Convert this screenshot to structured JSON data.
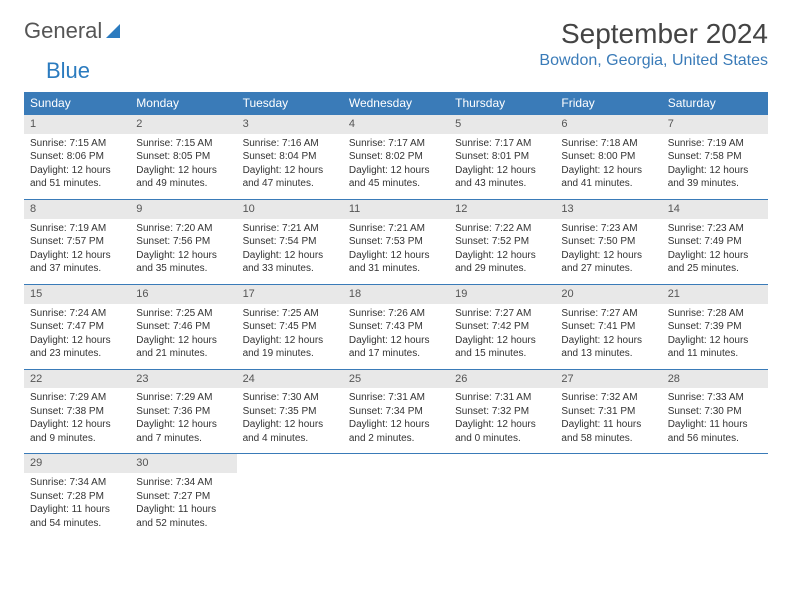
{
  "logo": {
    "text1": "General",
    "text2": "Blue"
  },
  "title": "September 2024",
  "location": "Bowdon, Georgia, United States",
  "colors": {
    "header_bg": "#3a7bb8",
    "header_text": "#ffffff",
    "daynum_bg": "#e8e8e8",
    "border": "#3a7bb8",
    "location_text": "#3a7bb8",
    "logo_blue": "#2b7bbf"
  },
  "weekdays": [
    "Sunday",
    "Monday",
    "Tuesday",
    "Wednesday",
    "Thursday",
    "Friday",
    "Saturday"
  ],
  "weeks": [
    [
      {
        "n": "1",
        "sr": "7:15 AM",
        "ss": "8:06 PM",
        "dl": "12 hours and 51 minutes."
      },
      {
        "n": "2",
        "sr": "7:15 AM",
        "ss": "8:05 PM",
        "dl": "12 hours and 49 minutes."
      },
      {
        "n": "3",
        "sr": "7:16 AM",
        "ss": "8:04 PM",
        "dl": "12 hours and 47 minutes."
      },
      {
        "n": "4",
        "sr": "7:17 AM",
        "ss": "8:02 PM",
        "dl": "12 hours and 45 minutes."
      },
      {
        "n": "5",
        "sr": "7:17 AM",
        "ss": "8:01 PM",
        "dl": "12 hours and 43 minutes."
      },
      {
        "n": "6",
        "sr": "7:18 AM",
        "ss": "8:00 PM",
        "dl": "12 hours and 41 minutes."
      },
      {
        "n": "7",
        "sr": "7:19 AM",
        "ss": "7:58 PM",
        "dl": "12 hours and 39 minutes."
      }
    ],
    [
      {
        "n": "8",
        "sr": "7:19 AM",
        "ss": "7:57 PM",
        "dl": "12 hours and 37 minutes."
      },
      {
        "n": "9",
        "sr": "7:20 AM",
        "ss": "7:56 PM",
        "dl": "12 hours and 35 minutes."
      },
      {
        "n": "10",
        "sr": "7:21 AM",
        "ss": "7:54 PM",
        "dl": "12 hours and 33 minutes."
      },
      {
        "n": "11",
        "sr": "7:21 AM",
        "ss": "7:53 PM",
        "dl": "12 hours and 31 minutes."
      },
      {
        "n": "12",
        "sr": "7:22 AM",
        "ss": "7:52 PM",
        "dl": "12 hours and 29 minutes."
      },
      {
        "n": "13",
        "sr": "7:23 AM",
        "ss": "7:50 PM",
        "dl": "12 hours and 27 minutes."
      },
      {
        "n": "14",
        "sr": "7:23 AM",
        "ss": "7:49 PM",
        "dl": "12 hours and 25 minutes."
      }
    ],
    [
      {
        "n": "15",
        "sr": "7:24 AM",
        "ss": "7:47 PM",
        "dl": "12 hours and 23 minutes."
      },
      {
        "n": "16",
        "sr": "7:25 AM",
        "ss": "7:46 PM",
        "dl": "12 hours and 21 minutes."
      },
      {
        "n": "17",
        "sr": "7:25 AM",
        "ss": "7:45 PM",
        "dl": "12 hours and 19 minutes."
      },
      {
        "n": "18",
        "sr": "7:26 AM",
        "ss": "7:43 PM",
        "dl": "12 hours and 17 minutes."
      },
      {
        "n": "19",
        "sr": "7:27 AM",
        "ss": "7:42 PM",
        "dl": "12 hours and 15 minutes."
      },
      {
        "n": "20",
        "sr": "7:27 AM",
        "ss": "7:41 PM",
        "dl": "12 hours and 13 minutes."
      },
      {
        "n": "21",
        "sr": "7:28 AM",
        "ss": "7:39 PM",
        "dl": "12 hours and 11 minutes."
      }
    ],
    [
      {
        "n": "22",
        "sr": "7:29 AM",
        "ss": "7:38 PM",
        "dl": "12 hours and 9 minutes."
      },
      {
        "n": "23",
        "sr": "7:29 AM",
        "ss": "7:36 PM",
        "dl": "12 hours and 7 minutes."
      },
      {
        "n": "24",
        "sr": "7:30 AM",
        "ss": "7:35 PM",
        "dl": "12 hours and 4 minutes."
      },
      {
        "n": "25",
        "sr": "7:31 AM",
        "ss": "7:34 PM",
        "dl": "12 hours and 2 minutes."
      },
      {
        "n": "26",
        "sr": "7:31 AM",
        "ss": "7:32 PM",
        "dl": "12 hours and 0 minutes."
      },
      {
        "n": "27",
        "sr": "7:32 AM",
        "ss": "7:31 PM",
        "dl": "11 hours and 58 minutes."
      },
      {
        "n": "28",
        "sr": "7:33 AM",
        "ss": "7:30 PM",
        "dl": "11 hours and 56 minutes."
      }
    ],
    [
      {
        "n": "29",
        "sr": "7:34 AM",
        "ss": "7:28 PM",
        "dl": "11 hours and 54 minutes."
      },
      {
        "n": "30",
        "sr": "7:34 AM",
        "ss": "7:27 PM",
        "dl": "11 hours and 52 minutes."
      },
      null,
      null,
      null,
      null,
      null
    ]
  ],
  "labels": {
    "sunrise": "Sunrise:",
    "sunset": "Sunset:",
    "daylight": "Daylight:"
  }
}
